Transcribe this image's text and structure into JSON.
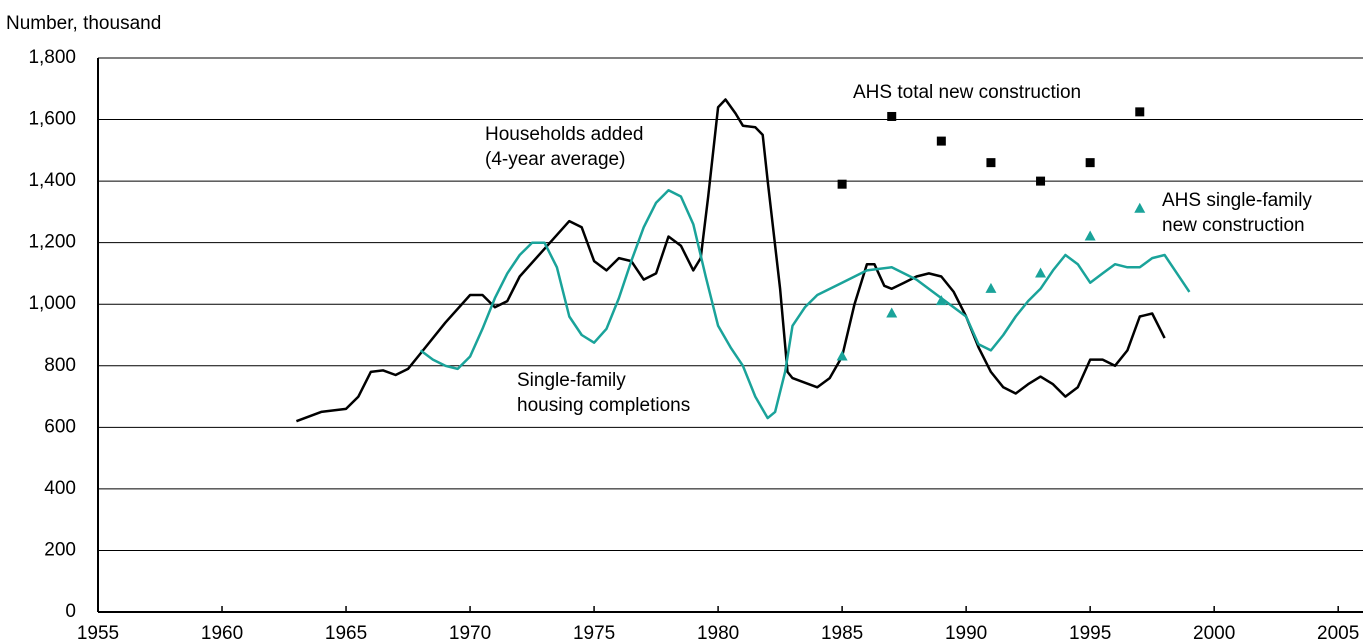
{
  "chart_data": {
    "type": "line",
    "y_axis_label": "Number, thousand",
    "xlim": [
      1955,
      2006
    ],
    "xticks": [
      1955,
      1960,
      1965,
      1970,
      1975,
      1980,
      1985,
      1990,
      1995,
      2000,
      2005
    ],
    "ylim": [
      0,
      1800
    ],
    "yticks": [
      0,
      200,
      400,
      600,
      800,
      {
        "value": 1000,
        "label": "1,000"
      },
      {
        "value": 1200,
        "label": "1,200"
      },
      {
        "value": 1400,
        "label": "1,400"
      },
      {
        "value": 1600,
        "label": "1,600"
      },
      {
        "value": 1800,
        "label": "1,800"
      }
    ],
    "grid": true,
    "series": [
      {
        "name": [
          "Households added",
          "(4-year average)"
        ],
        "kind": "line",
        "color": "#000000",
        "x": [
          1963,
          1964,
          1965,
          1965.5,
          1966,
          1966.5,
          1967,
          1967.5,
          1968,
          1969,
          1970,
          1970.5,
          1971,
          1971.5,
          1972,
          1973,
          1974,
          1974.5,
          1975,
          1975.5,
          1976,
          1976.5,
          1977,
          1977.5,
          1978,
          1978.5,
          1979,
          1979.3,
          1979.6,
          1980,
          1980.3,
          1980.7,
          1981,
          1981.5,
          1981.8,
          1982,
          1982.5,
          1982.8,
          1983,
          1984,
          1984.5,
          1985,
          1985.5,
          1986,
          1986.3,
          1986.7,
          1987,
          1987.5,
          1988,
          1988.5,
          1989,
          1989.5,
          1990,
          1990.5,
          1991,
          1991.5,
          1992,
          1992.5,
          1993,
          1993.5,
          1994,
          1994.5,
          1995,
          1995.5,
          1996,
          1996.5,
          1997,
          1997.5,
          1998
        ],
        "values": [
          620,
          650,
          660,
          700,
          780,
          785,
          770,
          790,
          840,
          940,
          1030,
          1030,
          990,
          1010,
          1090,
          1180,
          1270,
          1250,
          1140,
          1110,
          1150,
          1140,
          1080,
          1100,
          1220,
          1190,
          1110,
          1150,
          1350,
          1640,
          1665,
          1620,
          1580,
          1575,
          1550,
          1400,
          1050,
          780,
          760,
          730,
          760,
          830,
          1000,
          1130,
          1130,
          1060,
          1050,
          1070,
          1090,
          1100,
          1090,
          1040,
          960,
          860,
          780,
          730,
          710,
          740,
          765,
          740,
          700,
          730,
          820,
          820,
          800,
          850,
          960,
          970,
          890
        ]
      },
      {
        "name": [
          "Single-family",
          "housing completions"
        ],
        "kind": "line",
        "color": "#1aa39a",
        "x": [
          1968,
          1968.5,
          1969,
          1969.5,
          1970,
          1970.5,
          1971,
          1971.5,
          1972,
          1972.5,
          1973,
          1973.5,
          1974,
          1974.5,
          1975,
          1975.5,
          1976,
          1976.5,
          1977,
          1977.5,
          1978,
          1978.5,
          1979,
          1979.5,
          1980,
          1980.5,
          1981,
          1981.5,
          1982,
          1982.3,
          1982.7,
          1983,
          1983.5,
          1984,
          1985,
          1986,
          1987,
          1988,
          1989,
          1990,
          1990.5,
          1991,
          1991.5,
          1992,
          1992.5,
          1993,
          1993.5,
          1994,
          1994.5,
          1995,
          1995.5,
          1996,
          1996.5,
          1997,
          1997.5,
          1998,
          1998.5,
          1999
        ],
        "values": [
          850,
          820,
          800,
          790,
          830,
          920,
          1020,
          1100,
          1160,
          1200,
          1200,
          1120,
          960,
          900,
          875,
          920,
          1020,
          1140,
          1250,
          1330,
          1370,
          1350,
          1260,
          1090,
          930,
          860,
          800,
          700,
          630,
          650,
          780,
          930,
          990,
          1030,
          1070,
          1110,
          1120,
          1080,
          1020,
          960,
          870,
          850,
          900,
          960,
          1010,
          1050,
          1110,
          1160,
          1130,
          1070,
          1100,
          1130,
          1120,
          1120,
          1150,
          1160,
          1100,
          1040
        ]
      },
      {
        "name": [
          "AHS total new construction"
        ],
        "kind": "square",
        "color": "#000000",
        "x": [
          1985,
          1987,
          1989,
          1991,
          1993,
          1995,
          1997
        ],
        "values": [
          1390,
          1610,
          1530,
          1460,
          1400,
          1460,
          1625
        ]
      },
      {
        "name": [
          "AHS single-family",
          "new construction"
        ],
        "kind": "triangle",
        "color": "#1aa39a",
        "x": [
          1985,
          1987,
          1989,
          1991,
          1993,
          1995,
          1997
        ],
        "values": [
          830,
          970,
          1010,
          1050,
          1100,
          1220,
          1310
        ]
      }
    ]
  }
}
